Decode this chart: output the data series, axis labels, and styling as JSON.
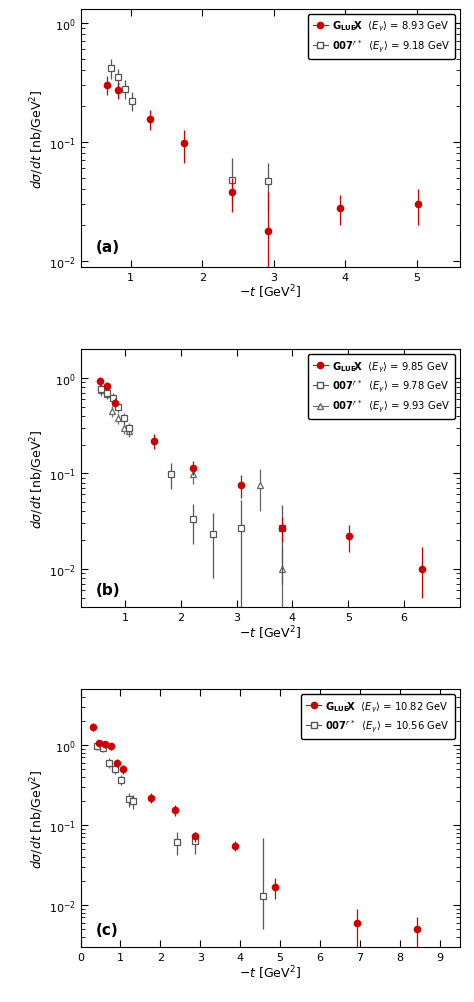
{
  "panel_a": {
    "gluex": {
      "x": [
        0.67,
        0.82,
        1.27,
        1.75,
        2.42,
        2.92,
        3.92,
        5.02
      ],
      "y": [
        0.3,
        0.275,
        0.155,
        0.097,
        0.038,
        0.018,
        0.028,
        0.03
      ],
      "yerr_lo": [
        0.055,
        0.045,
        0.03,
        0.03,
        0.012,
        0.009,
        0.008,
        0.01
      ],
      "yerr_hi": [
        0.055,
        0.045,
        0.03,
        0.03,
        0.012,
        0.02,
        0.008,
        0.01
      ]
    },
    "saphir": {
      "x": [
        0.72,
        0.82,
        0.92,
        1.02,
        2.42,
        2.92
      ],
      "y": [
        0.42,
        0.35,
        0.28,
        0.22,
        0.048,
        0.047
      ],
      "yerr_lo": [
        0.08,
        0.06,
        0.05,
        0.04,
        0.018,
        0.02
      ],
      "yerr_hi": [
        0.08,
        0.06,
        0.05,
        0.04,
        0.025,
        0.02
      ]
    },
    "energy_gluex": "8.93",
    "energy_saphir": "9.18",
    "label": "(a)",
    "xlim": [
      0.3,
      5.6
    ],
    "ylim": [
      0.009,
      1.3
    ],
    "xticks": [
      1,
      2,
      3,
      4,
      5
    ]
  },
  "panel_b": {
    "gluex": {
      "x": [
        0.55,
        0.67,
        0.82,
        1.52,
        2.22,
        3.07,
        3.82,
        5.02,
        6.32
      ],
      "y": [
        0.92,
        0.82,
        0.55,
        0.22,
        0.115,
        0.075,
        0.027,
        0.022,
        0.01
      ],
      "yerr_lo": [
        0.1,
        0.08,
        0.06,
        0.04,
        0.02,
        0.02,
        0.008,
        0.007,
        0.005
      ],
      "yerr_hi": [
        0.1,
        0.08,
        0.06,
        0.04,
        0.02,
        0.02,
        0.008,
        0.007,
        0.007
      ]
    },
    "saphir1": {
      "x": [
        0.57,
        0.67,
        0.78,
        0.87,
        0.97,
        1.07,
        1.82,
        2.22,
        2.57,
        3.07,
        3.82
      ],
      "y": [
        0.77,
        0.7,
        0.62,
        0.5,
        0.38,
        0.3,
        0.098,
        0.033,
        0.023,
        0.027,
        0.027
      ],
      "yerr_lo": [
        0.1,
        0.08,
        0.07,
        0.06,
        0.05,
        0.04,
        0.03,
        0.015,
        0.015,
        0.025,
        0.02
      ],
      "yerr_hi": [
        0.1,
        0.08,
        0.07,
        0.06,
        0.05,
        0.04,
        0.03,
        0.015,
        0.015,
        0.025,
        0.02
      ]
    },
    "saphir2": {
      "x": [
        0.57,
        0.67,
        0.77,
        0.87,
        0.97,
        1.07,
        2.22,
        3.42,
        3.82
      ],
      "y": [
        0.75,
        0.68,
        0.45,
        0.38,
        0.3,
        0.28,
        0.098,
        0.075,
        0.01
      ],
      "yerr_lo": [
        0.1,
        0.08,
        0.06,
        0.05,
        0.04,
        0.04,
        0.02,
        0.035,
        0.007
      ],
      "yerr_hi": [
        0.1,
        0.08,
        0.06,
        0.05,
        0.04,
        0.04,
        0.02,
        0.035,
        0.007
      ]
    },
    "energy_gluex": "9.85",
    "energy_saphir1": "9.78",
    "energy_saphir2": "9.93",
    "label": "(b)",
    "xlim": [
      0.2,
      7.0
    ],
    "ylim": [
      0.004,
      2.0
    ],
    "xticks": [
      1,
      2,
      3,
      4,
      5,
      6
    ]
  },
  "panel_c": {
    "gluex": {
      "x": [
        0.32,
        0.47,
        0.62,
        0.77,
        0.92,
        1.07,
        1.77,
        2.37,
        2.87,
        3.87,
        4.87,
        6.92,
        8.42
      ],
      "y": [
        1.7,
        1.05,
        1.02,
        0.97,
        0.6,
        0.5,
        0.22,
        0.155,
        0.072,
        0.055,
        0.017,
        0.006,
        0.005
      ],
      "yerr_lo": [
        0.2,
        0.1,
        0.1,
        0.1,
        0.07,
        0.06,
        0.03,
        0.025,
        0.01,
        0.008,
        0.005,
        0.003,
        0.002
      ],
      "yerr_hi": [
        0.2,
        0.1,
        0.1,
        0.1,
        0.07,
        0.06,
        0.03,
        0.025,
        0.01,
        0.008,
        0.005,
        0.003,
        0.002
      ]
    },
    "saphir": {
      "x": [
        0.42,
        0.57,
        0.72,
        0.87,
        1.02,
        1.22,
        1.32,
        2.42,
        2.87,
        4.57
      ],
      "y": [
        0.97,
        0.92,
        0.6,
        0.5,
        0.37,
        0.21,
        0.2,
        0.062,
        0.063,
        0.013
      ],
      "yerr_lo": [
        0.1,
        0.1,
        0.08,
        0.06,
        0.05,
        0.04,
        0.04,
        0.02,
        0.02,
        0.008
      ],
      "yerr_hi": [
        0.1,
        0.1,
        0.08,
        0.06,
        0.05,
        0.04,
        0.04,
        0.02,
        0.02,
        0.055
      ]
    },
    "energy_gluex": "10.82",
    "energy_saphir": "10.56",
    "label": "(c)",
    "xlim": [
      0.0,
      9.5
    ],
    "ylim": [
      0.003,
      5.0
    ],
    "xticks": [
      0,
      1,
      2,
      3,
      4,
      5,
      6,
      7,
      8,
      9
    ]
  },
  "gluex_color": "#cc0000",
  "saphir_color": "#555555",
  "saphir2_color": "#666666",
  "ylabel": "$d\\sigma/dt$ [nb/GeV$^2$]",
  "xlabel": "$-t$ [GeV$^2$]"
}
